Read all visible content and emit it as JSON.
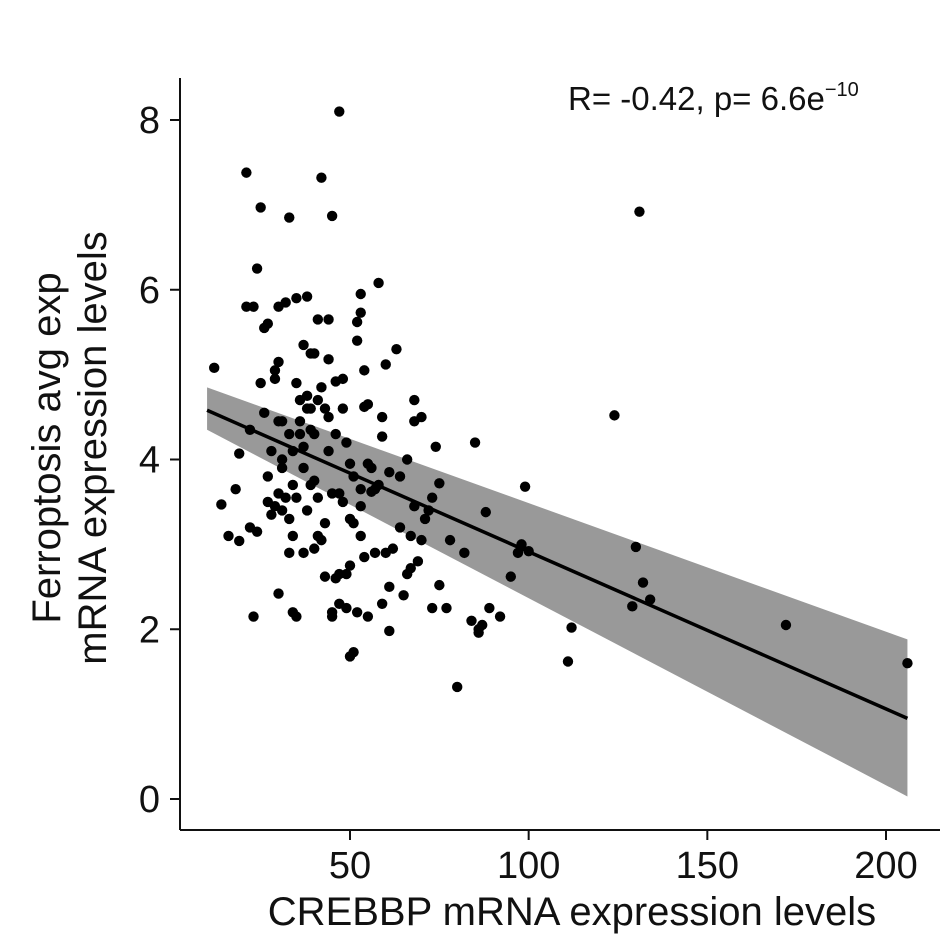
{
  "chart_data": {
    "type": "scatter",
    "xlabel": "CREBBP mRNA expression levels",
    "ylabel_lines": [
      "Ferroptosis avg exp",
      "mRNA expression levels"
    ],
    "annotation": {
      "text": "R= -0.42, p= 6.6e",
      "superscript": "−10"
    },
    "x_ticks": [
      50,
      100,
      150,
      200
    ],
    "y_ticks": [
      0,
      2,
      4,
      6,
      8
    ],
    "xlim": [
      0,
      215
    ],
    "ylim": [
      -0.5,
      8.5
    ],
    "regression": {
      "x_start": 10,
      "y_start": 4.58,
      "x_end": 206,
      "y_end": 0.95,
      "ci_upper_start": 4.85,
      "ci_lower_start": 4.35,
      "ci_upper_end": 1.88,
      "ci_lower_end": 0.03
    },
    "points": [
      [
        12,
        5.08
      ],
      [
        14,
        3.47
      ],
      [
        16,
        3.1
      ],
      [
        18,
        3.65
      ],
      [
        19,
        4.07
      ],
      [
        19,
        3.04
      ],
      [
        21,
        5.8
      ],
      [
        21,
        7.38
      ],
      [
        22,
        4.35
      ],
      [
        22,
        3.2
      ],
      [
        23,
        2.15
      ],
      [
        23,
        5.8
      ],
      [
        24,
        3.15
      ],
      [
        24,
        6.25
      ],
      [
        25,
        4.9
      ],
      [
        25,
        6.97
      ],
      [
        26,
        5.55
      ],
      [
        26,
        4.55
      ],
      [
        27,
        3.5
      ],
      [
        27,
        3.8
      ],
      [
        27,
        5.6
      ],
      [
        28,
        3.35
      ],
      [
        28,
        4.1
      ],
      [
        29,
        3.45
      ],
      [
        29,
        5.05
      ],
      [
        29,
        4.95
      ],
      [
        30,
        3.6
      ],
      [
        30,
        5.8
      ],
      [
        30,
        4.45
      ],
      [
        30,
        2.42
      ],
      [
        30,
        5.15
      ],
      [
        31,
        3.4
      ],
      [
        31,
        3.9
      ],
      [
        31,
        4.0
      ],
      [
        31,
        4.45
      ],
      [
        32,
        5.85
      ],
      [
        32,
        3.55
      ],
      [
        33,
        3.3
      ],
      [
        33,
        4.3
      ],
      [
        33,
        2.9
      ],
      [
        33,
        6.85
      ],
      [
        34,
        4.1
      ],
      [
        34,
        2.2
      ],
      [
        34,
        3.1
      ],
      [
        34,
        3.7
      ],
      [
        35,
        4.9
      ],
      [
        35,
        3.55
      ],
      [
        35,
        2.15
      ],
      [
        35,
        5.9
      ],
      [
        36,
        4.7
      ],
      [
        36,
        4.45
      ],
      [
        36,
        4.3
      ],
      [
        37,
        4.15
      ],
      [
        37,
        3.9
      ],
      [
        37,
        2.9
      ],
      [
        37,
        5.35
      ],
      [
        38,
        3.4
      ],
      [
        38,
        4.75
      ],
      [
        38,
        5.92
      ],
      [
        38,
        4.6
      ],
      [
        39,
        5.25
      ],
      [
        39,
        4.6
      ],
      [
        39,
        3.7
      ],
      [
        39,
        4.35
      ],
      [
        40,
        5.25
      ],
      [
        40,
        2.95
      ],
      [
        40,
        4.3
      ],
      [
        40,
        3.75
      ],
      [
        41,
        5.65
      ],
      [
        41,
        3.55
      ],
      [
        41,
        3.1
      ],
      [
        41,
        4.7
      ],
      [
        42,
        7.32
      ],
      [
        42,
        3.05
      ],
      [
        42,
        4.85
      ],
      [
        43,
        3.25
      ],
      [
        43,
        2.62
      ],
      [
        43,
        4.6
      ],
      [
        44,
        5.65
      ],
      [
        44,
        4.5
      ],
      [
        44,
        4.1
      ],
      [
        44,
        5.18
      ],
      [
        45,
        3.6
      ],
      [
        45,
        2.2
      ],
      [
        45,
        6.87
      ],
      [
        45,
        2.15
      ],
      [
        46,
        4.92
      ],
      [
        46,
        4.3
      ],
      [
        46,
        2.6
      ],
      [
        47,
        8.1
      ],
      [
        47,
        2.3
      ],
      [
        47,
        2.65
      ],
      [
        47,
        3.6
      ],
      [
        48,
        4.95
      ],
      [
        48,
        4.6
      ],
      [
        48,
        3.5
      ],
      [
        49,
        4.2
      ],
      [
        49,
        2.65
      ],
      [
        49,
        2.25
      ],
      [
        50,
        3.3
      ],
      [
        50,
        2.75
      ],
      [
        50,
        1.68
      ],
      [
        50,
        3.95
      ],
      [
        51,
        3.25
      ],
      [
        51,
        3.8
      ],
      [
        51,
        1.73
      ],
      [
        52,
        2.2
      ],
      [
        52,
        5.62
      ],
      [
        52,
        5.4
      ],
      [
        53,
        3.45
      ],
      [
        53,
        3.1
      ],
      [
        53,
        3.65
      ],
      [
        53,
        5.95
      ],
      [
        53,
        5.73
      ],
      [
        54,
        4.62
      ],
      [
        54,
        2.85
      ],
      [
        54,
        5.05
      ],
      [
        55,
        4.65
      ],
      [
        55,
        3.95
      ],
      [
        55,
        2.15
      ],
      [
        56,
        3.9
      ],
      [
        56,
        3.62
      ],
      [
        57,
        3.65
      ],
      [
        57,
        2.9
      ],
      [
        58,
        3.7
      ],
      [
        58,
        6.08
      ],
      [
        59,
        4.5
      ],
      [
        59,
        4.27
      ],
      [
        59,
        2.3
      ],
      [
        60,
        5.12
      ],
      [
        60,
        2.9
      ],
      [
        61,
        2.5
      ],
      [
        61,
        1.98
      ],
      [
        61,
        3.85
      ],
      [
        62,
        2.95
      ],
      [
        63,
        5.3
      ],
      [
        64,
        3.2
      ],
      [
        64,
        3.8
      ],
      [
        65,
        2.4
      ],
      [
        66,
        2.65
      ],
      [
        66,
        4.0
      ],
      [
        67,
        3.1
      ],
      [
        67,
        2.72
      ],
      [
        68,
        3.45
      ],
      [
        68,
        4.7
      ],
      [
        68,
        4.45
      ],
      [
        69,
        2.8
      ],
      [
        70,
        4.5
      ],
      [
        70,
        3.05
      ],
      [
        71,
        3.3
      ],
      [
        72,
        3.4
      ],
      [
        73,
        3.55
      ],
      [
        73,
        2.25
      ],
      [
        74,
        4.15
      ],
      [
        75,
        3.72
      ],
      [
        75,
        2.52
      ],
      [
        77,
        2.25
      ],
      [
        78,
        3.05
      ],
      [
        80,
        1.32
      ],
      [
        82,
        2.9
      ],
      [
        84,
        2.1
      ],
      [
        85,
        4.2
      ],
      [
        86,
        2.0
      ],
      [
        86,
        1.96
      ],
      [
        87,
        2.05
      ],
      [
        88,
        3.38
      ],
      [
        89,
        2.25
      ],
      [
        92,
        2.15
      ],
      [
        95,
        2.62
      ],
      [
        97,
        2.9
      ],
      [
        98,
        3.0
      ],
      [
        99,
        3.68
      ],
      [
        100,
        2.92
      ],
      [
        111,
        1.62
      ],
      [
        112,
        2.02
      ],
      [
        124,
        4.52
      ],
      [
        129,
        2.27
      ],
      [
        130,
        2.97
      ],
      [
        131,
        6.92
      ],
      [
        132,
        2.55
      ],
      [
        134,
        2.35
      ],
      [
        172,
        2.05
      ],
      [
        206,
        1.6
      ]
    ]
  }
}
